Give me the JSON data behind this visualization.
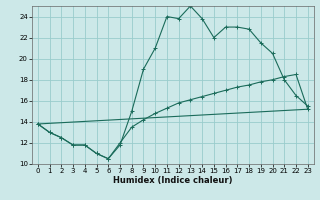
{
  "xlabel": "Humidex (Indice chaleur)",
  "background_color": "#cce8e8",
  "grid_color": "#99cccc",
  "line_color": "#1a6b5a",
  "xlim": [
    -0.5,
    23.5
  ],
  "ylim": [
    10,
    25
  ],
  "xticks": [
    0,
    1,
    2,
    3,
    4,
    5,
    6,
    7,
    8,
    9,
    10,
    11,
    12,
    13,
    14,
    15,
    16,
    17,
    18,
    19,
    20,
    21,
    22,
    23
  ],
  "yticks": [
    10,
    12,
    14,
    16,
    18,
    20,
    22,
    24
  ],
  "series": [
    {
      "x": [
        0,
        1,
        2,
        3,
        4,
        5,
        6,
        7,
        8,
        9,
        10,
        11,
        12,
        13,
        14,
        15,
        16,
        17,
        18,
        19,
        20,
        21,
        22,
        23
      ],
      "y": [
        13.8,
        13.0,
        12.5,
        11.8,
        11.8,
        11.0,
        10.5,
        11.8,
        15.0,
        19.0,
        21.0,
        24.0,
        23.8,
        25.0,
        23.8,
        22.0,
        23.0,
        23.0,
        22.8,
        21.5,
        20.5,
        18.0,
        16.5,
        15.5
      ]
    },
    {
      "x": [
        0,
        1,
        2,
        3,
        4,
        5,
        6,
        7,
        8,
        9,
        10,
        11,
        12,
        13,
        14,
        15,
        16,
        17,
        18,
        19,
        20,
        21,
        22,
        23
      ],
      "y": [
        13.8,
        13.0,
        12.5,
        11.8,
        11.8,
        11.0,
        10.5,
        12.0,
        13.5,
        14.2,
        14.8,
        15.3,
        15.8,
        16.1,
        16.4,
        16.7,
        17.0,
        17.3,
        17.5,
        17.8,
        18.0,
        18.3,
        18.5,
        15.2
      ]
    },
    {
      "x": [
        0,
        23
      ],
      "y": [
        13.8,
        15.2
      ]
    }
  ]
}
